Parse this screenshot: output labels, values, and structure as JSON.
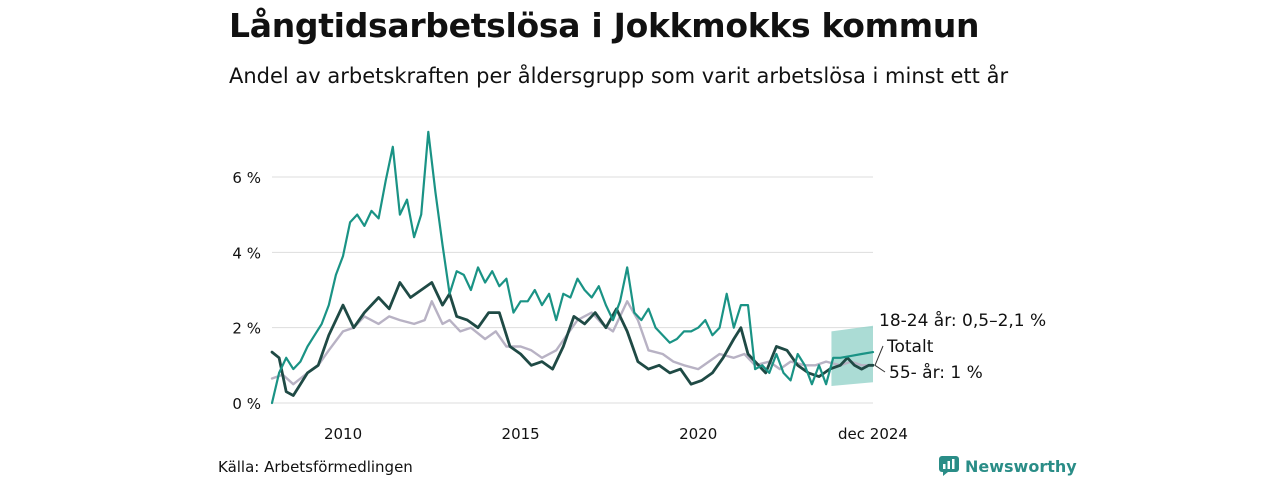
{
  "title": "Långtidsarbetslösa i Jokkmokks kommun",
  "subtitle": "Andel av arbetskraften per åldersgrupp som varit arbetslösa i minst ett år",
  "source": "Källa: Arbetsförmedlingen",
  "brand": "Newsworthy",
  "colors": {
    "youth": "#1a9385",
    "total": "#1f4a45",
    "old": "#b8b2c4",
    "band": "#8fd0c7",
    "grid": "#dddddd",
    "brand": "#2a8d87"
  },
  "chart_data": {
    "type": "line",
    "x_unit": "year (decimal)",
    "ylim": [
      0,
      7.3
    ],
    "xlim": [
      2008.0,
      2024.92
    ],
    "y_ticks": [
      {
        "value": 0,
        "label": "0 %"
      },
      {
        "value": 2,
        "label": "2 %"
      },
      {
        "value": 4,
        "label": "4 %"
      },
      {
        "value": 6,
        "label": "6 %"
      }
    ],
    "x_ticks": [
      {
        "value": 2010,
        "label": "2010"
      },
      {
        "value": 2015,
        "label": "2015"
      },
      {
        "value": 2020,
        "label": "2020"
      },
      {
        "value": 2024.92,
        "label": "dec 2024"
      }
    ],
    "series": [
      {
        "key": "old",
        "name": "55- år",
        "color": "#b8b2c4",
        "x": [
          2008.0,
          2008.3,
          2008.6,
          2009.0,
          2009.3,
          2009.6,
          2010.0,
          2010.3,
          2010.6,
          2011.0,
          2011.3,
          2011.6,
          2012.0,
          2012.3,
          2012.5,
          2012.8,
          2013.0,
          2013.3,
          2013.6,
          2014.0,
          2014.3,
          2014.6,
          2015.0,
          2015.3,
          2015.6,
          2016.0,
          2016.3,
          2016.6,
          2017.0,
          2017.3,
          2017.6,
          2018.0,
          2018.3,
          2018.6,
          2019.0,
          2019.3,
          2019.6,
          2020.0,
          2020.3,
          2020.6,
          2021.0,
          2021.3,
          2021.6,
          2022.0,
          2022.3,
          2022.6,
          2023.0,
          2023.3,
          2023.6,
          2024.0,
          2024.3,
          2024.6,
          2024.92
        ],
        "values": [
          0.65,
          0.75,
          0.5,
          0.8,
          1.0,
          1.4,
          1.9,
          2.0,
          2.3,
          2.1,
          2.3,
          2.2,
          2.1,
          2.2,
          2.7,
          2.1,
          2.2,
          1.9,
          2.0,
          1.7,
          1.9,
          1.5,
          1.5,
          1.4,
          1.2,
          1.4,
          1.8,
          2.2,
          2.4,
          2.1,
          1.9,
          2.7,
          2.2,
          1.4,
          1.3,
          1.1,
          1.0,
          0.9,
          1.1,
          1.3,
          1.2,
          1.3,
          1.0,
          1.1,
          0.9,
          1.1,
          1.0,
          1.0,
          1.1,
          1.0,
          1.1,
          1.0,
          1.0
        ]
      },
      {
        "key": "total",
        "name": "Totalt",
        "color": "#1f4a45",
        "x": [
          2008.0,
          2008.2,
          2008.4,
          2008.6,
          2008.8,
          2009.0,
          2009.3,
          2009.6,
          2010.0,
          2010.3,
          2010.6,
          2011.0,
          2011.3,
          2011.6,
          2011.9,
          2012.2,
          2012.5,
          2012.8,
          2013.0,
          2013.2,
          2013.5,
          2013.8,
          2014.1,
          2014.4,
          2014.7,
          2015.0,
          2015.3,
          2015.6,
          2015.9,
          2016.2,
          2016.5,
          2016.8,
          2017.1,
          2017.4,
          2017.7,
          2018.0,
          2018.3,
          2018.6,
          2018.9,
          2019.2,
          2019.5,
          2019.8,
          2020.1,
          2020.4,
          2020.7,
          2021.0,
          2021.2,
          2021.4,
          2021.6,
          2021.9,
          2022.2,
          2022.5,
          2022.8,
          2023.1,
          2023.4,
          2023.7,
          2024.0,
          2024.2,
          2024.4,
          2024.6,
          2024.8,
          2024.92
        ],
        "values": [
          1.35,
          1.2,
          0.3,
          0.2,
          0.5,
          0.8,
          1.0,
          1.8,
          2.6,
          2.0,
          2.4,
          2.8,
          2.5,
          3.2,
          2.8,
          3.0,
          3.2,
          2.6,
          2.9,
          2.3,
          2.2,
          2.0,
          2.4,
          2.4,
          1.5,
          1.3,
          1.0,
          1.1,
          0.9,
          1.5,
          2.3,
          2.1,
          2.4,
          2.0,
          2.5,
          1.9,
          1.1,
          0.9,
          1.0,
          0.8,
          0.9,
          0.5,
          0.6,
          0.8,
          1.2,
          1.7,
          2.0,
          1.3,
          1.1,
          0.8,
          1.5,
          1.4,
          1.0,
          0.8,
          0.7,
          0.9,
          1.0,
          1.2,
          1.0,
          0.9,
          1.0,
          1.0
        ]
      },
      {
        "key": "youth",
        "name": "18-24 år",
        "color": "#1a9385",
        "x": [
          2008.0,
          2008.2,
          2008.4,
          2008.6,
          2008.8,
          2009.0,
          2009.2,
          2009.4,
          2009.6,
          2009.8,
          2010.0,
          2010.2,
          2010.4,
          2010.6,
          2010.8,
          2011.0,
          2011.2,
          2011.4,
          2011.6,
          2011.8,
          2012.0,
          2012.2,
          2012.4,
          2012.6,
          2012.8,
          2013.0,
          2013.2,
          2013.4,
          2013.6,
          2013.8,
          2014.0,
          2014.2,
          2014.4,
          2014.6,
          2014.8,
          2015.0,
          2015.2,
          2015.4,
          2015.6,
          2015.8,
          2016.0,
          2016.2,
          2016.4,
          2016.6,
          2016.8,
          2017.0,
          2017.2,
          2017.4,
          2017.6,
          2017.8,
          2018.0,
          2018.2,
          2018.4,
          2018.6,
          2018.8,
          2019.0,
          2019.2,
          2019.4,
          2019.6,
          2019.8,
          2020.0,
          2020.2,
          2020.4,
          2020.6,
          2020.8,
          2021.0,
          2021.2,
          2021.4,
          2021.6,
          2021.8,
          2022.0,
          2022.2,
          2022.4,
          2022.6,
          2022.8,
          2023.0,
          2023.2,
          2023.4,
          2023.6,
          2023.8,
          2024.0,
          2024.3,
          2024.6,
          2024.92
        ],
        "values": [
          0.0,
          0.8,
          1.2,
          0.9,
          1.1,
          1.5,
          1.8,
          2.1,
          2.6,
          3.4,
          3.9,
          4.8,
          5.0,
          4.7,
          5.1,
          4.9,
          5.9,
          6.8,
          5.0,
          5.4,
          4.4,
          5.0,
          7.2,
          5.6,
          4.2,
          2.9,
          3.5,
          3.4,
          3.0,
          3.6,
          3.2,
          3.5,
          3.1,
          3.3,
          2.4,
          2.7,
          2.7,
          3.0,
          2.6,
          2.9,
          2.2,
          2.9,
          2.8,
          3.3,
          3.0,
          2.8,
          3.1,
          2.6,
          2.2,
          2.7,
          3.6,
          2.4,
          2.2,
          2.5,
          2.0,
          1.8,
          1.6,
          1.7,
          1.9,
          1.9,
          2.0,
          2.2,
          1.8,
          2.0,
          2.9,
          2.0,
          2.6,
          2.6,
          0.9,
          1.0,
          0.8,
          1.3,
          0.8,
          0.6,
          1.3,
          1.0,
          0.5,
          1.0,
          0.5,
          1.2,
          1.2,
          1.25,
          1.3,
          1.35
        ]
      }
    ],
    "band": {
      "name": "18-24 år: 0,5–2,1 %",
      "x": [
        2023.75,
        2024.92
      ],
      "lower": [
        0.45,
        0.55
      ],
      "upper": [
        1.9,
        2.05
      ]
    },
    "end_labels": [
      {
        "key": "youth",
        "text": "18-24 år: 0,5–2,1 %"
      },
      {
        "key": "total",
        "text": "Totalt"
      },
      {
        "key": "old",
        "text": "55- år:  1 %"
      }
    ]
  }
}
